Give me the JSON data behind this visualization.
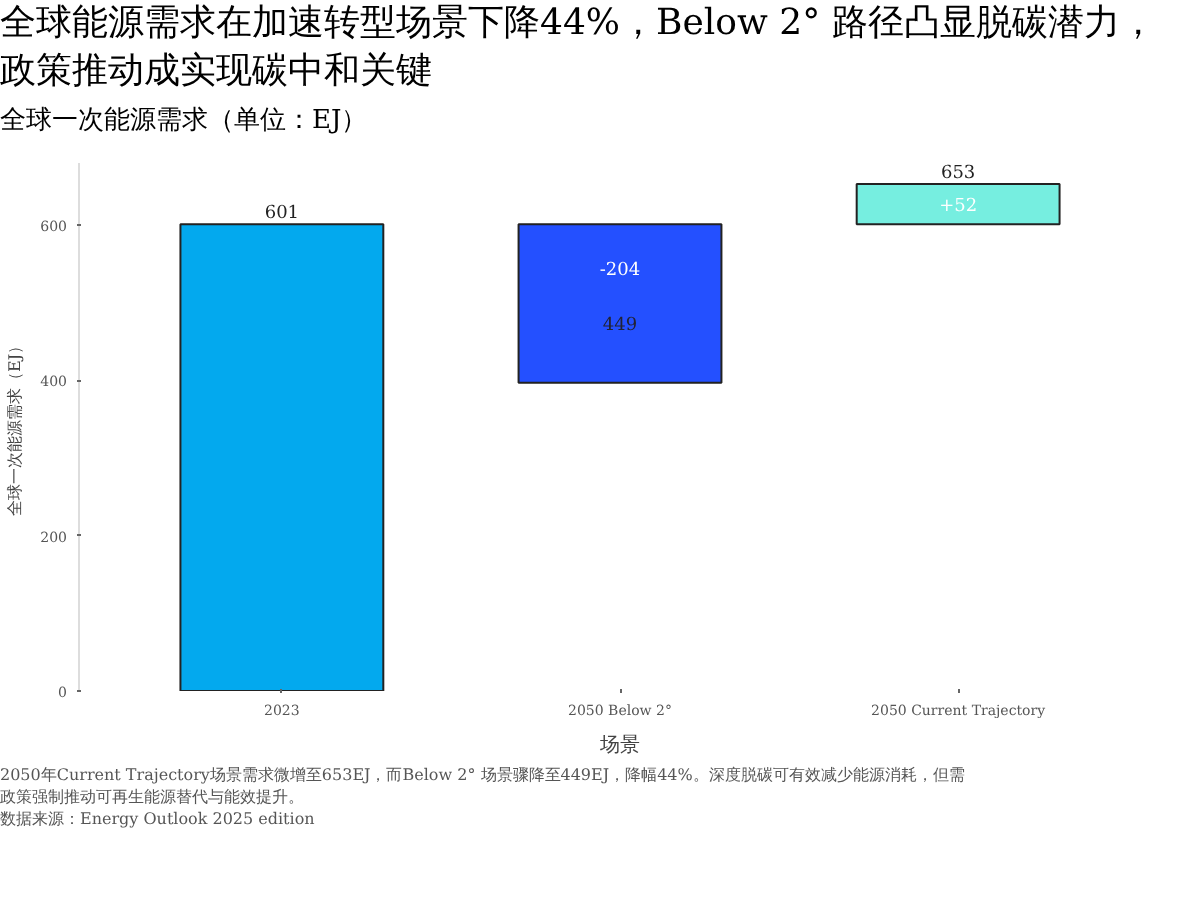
{
  "chart_data": {
    "type": "bar",
    "title": "全球能源需求在加速转型场景下降44%，Below 2° 路径凸显脱碳潜力，政策推动成实现碳中和关键",
    "subtitle": "全球一次能源需求（单位：EJ）",
    "xlabel": "场景",
    "ylabel": "全球一次能源需求（EJ）",
    "categories": [
      "2023",
      "2050 Below 2°",
      "2050 Current Trajectory"
    ],
    "values": [
      601,
      -204,
      52
    ],
    "base": [
      0,
      601,
      601
    ],
    "colors": [
      "#03a9ee",
      "#2450ff",
      "#76eee0"
    ],
    "value_labels": [
      "601",
      "-204",
      "+52"
    ],
    "ylim": [
      0,
      680
    ],
    "yticks": [
      0,
      200,
      400,
      600
    ],
    "grid": false,
    "annotations": [
      {
        "text": "449",
        "x": "2050 Below 2°",
        "y": 397
      },
      {
        "text": "653",
        "x": "2050 Current Trajectory",
        "y": 653
      },
      "2050年Current Trajectory场景需求微增至653EJ，而Below 2° 场景骤降至449EJ，降幅44%。深度脱碳可有效减少能源消耗，但需政策强制推动可再生能源替代与能效提升。",
      "数据来源：Energy Outlook 2025 edition"
    ]
  }
}
